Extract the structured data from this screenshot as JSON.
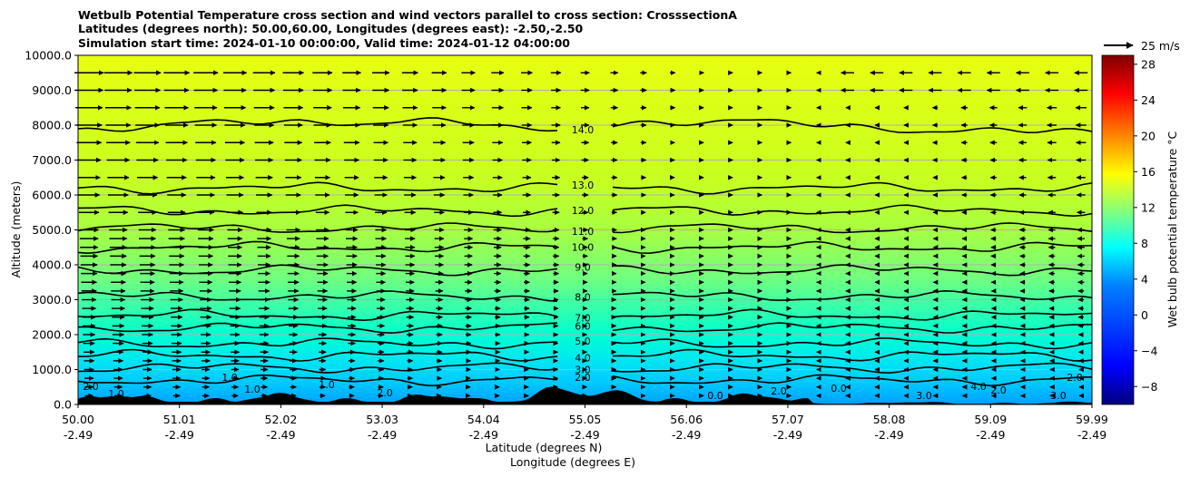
{
  "title_lines": [
    "Wetbulb Potential Temperature cross section and wind vectors parallel to cross section: CrosssectionA",
    "Latitudes (degrees north): 50.00,60.00, Longitudes (degrees east): -2.50,-2.50",
    "Simulation start time: 2024-01-10 00:00:00, Valid time: 2024-01-12 04:00:00"
  ],
  "quiver_key_label": "25 m/s",
  "chart_data": {
    "type": "contour",
    "xlabel_lines": [
      "Latitude (degrees N)",
      "Longitude (degrees E)"
    ],
    "ylabel": "Altitude (meters)",
    "colorbar_label": "Wet bulb potential temperature $^\\circ$C",
    "x_ticks": [
      {
        "lat": "50.00",
        "lon": "-2.49"
      },
      {
        "lat": "51.01",
        "lon": "-2.49"
      },
      {
        "lat": "52.02",
        "lon": "-2.49"
      },
      {
        "lat": "53.03",
        "lon": "-2.49"
      },
      {
        "lat": "54.04",
        "lon": "-2.49"
      },
      {
        "lat": "55.05",
        "lon": "-2.49"
      },
      {
        "lat": "56.06",
        "lon": "-2.49"
      },
      {
        "lat": "57.07",
        "lon": "-2.49"
      },
      {
        "lat": "58.08",
        "lon": "-2.49"
      },
      {
        "lat": "59.09",
        "lon": "-2.49"
      },
      {
        "lat": "59.99",
        "lon": "-2.49"
      }
    ],
    "xlim": [
      50.0,
      59.99
    ],
    "y_ticks": [
      "0.0",
      "1000.0",
      "2000.0",
      "3000.0",
      "4000.0",
      "5000.0",
      "6000.0",
      "7000.0",
      "8000.0",
      "9000.0",
      "10000.0"
    ],
    "ylim": [
      0,
      10000
    ],
    "colorbar_ticks": [
      "−8",
      "−4",
      "0",
      "4",
      "8",
      "12",
      "16",
      "20",
      "24",
      "28"
    ],
    "colorbar_range": [
      -10,
      29
    ],
    "grid": "horizontal",
    "contour_levels": [
      {
        "value": 2.0,
        "label": "2.0",
        "height_m": 700
      },
      {
        "value": 3.0,
        "label": "3.0",
        "height_m": 1050
      },
      {
        "value": 4.0,
        "label": "4.0",
        "height_m": 1400
      },
      {
        "value": 5.0,
        "label": "5.0",
        "height_m": 1750
      },
      {
        "value": 6.0,
        "label": "6.0",
        "height_m": 2200
      },
      {
        "value": 7.0,
        "label": "7.0",
        "height_m": 2550
      },
      {
        "value": 8.0,
        "label": "8.0",
        "height_m": 3100
      },
      {
        "value": 9.0,
        "label": "9.0",
        "height_m": 3850
      },
      {
        "value": 10.0,
        "label": "10.0",
        "height_m": 4500
      },
      {
        "value": 11.0,
        "label": "11.0",
        "height_m": 5050
      },
      {
        "value": 12.0,
        "label": "12.0",
        "height_m": 5550
      },
      {
        "value": 13.0,
        "label": "13.0",
        "height_m": 6200
      },
      {
        "value": 14.0,
        "label": "14.0",
        "height_m": 7900
      }
    ],
    "low_level_labels": [
      "2.0",
      "1.0",
      "1.0",
      "1.0",
      "1.0",
      "2.0",
      "0.0",
      "2.0",
      "0.0",
      "3.0",
      "4.0",
      "2.0",
      "3.0",
      "2.0"
    ],
    "wind_rows_m": [
      250,
      500,
      750,
      1000,
      1250,
      1500,
      1750,
      2000,
      2250,
      2500,
      2750,
      3000,
      3250,
      3500,
      3750,
      4000,
      4250,
      4500,
      4750,
      5000,
      5500,
      6000,
      6500,
      7000,
      7500,
      8000,
      8500,
      9000,
      9500
    ],
    "wind_cols": 35
  }
}
